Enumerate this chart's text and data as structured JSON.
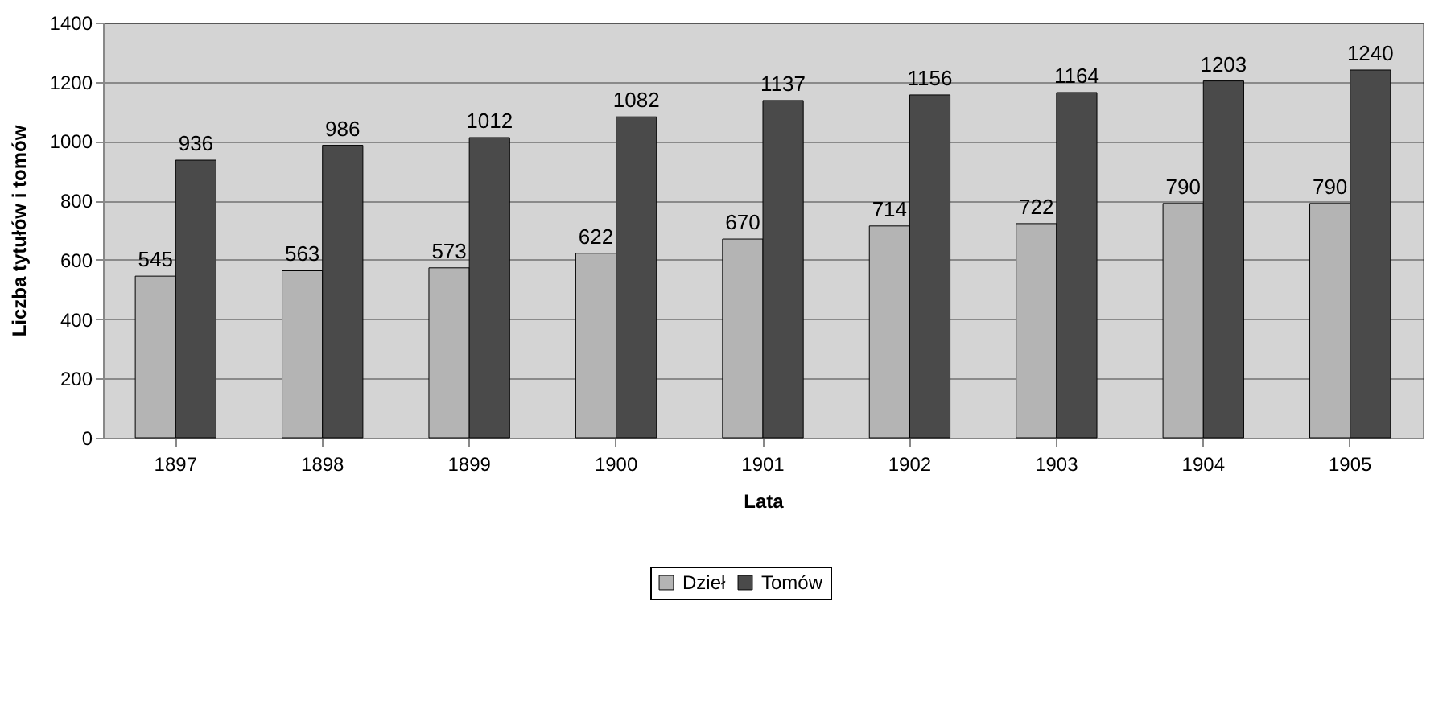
{
  "chart_data": {
    "type": "bar",
    "xlabel": "Lata",
    "ylabel": "Liczba tytułów i tomów",
    "categories": [
      "1897",
      "1898",
      "1899",
      "1900",
      "1901",
      "1902",
      "1903",
      "1904",
      "1905"
    ],
    "series": [
      {
        "name": "Dzieł",
        "color": "#b4b4b4",
        "values": [
          545,
          563,
          573,
          622,
          670,
          714,
          722,
          790,
          790
        ]
      },
      {
        "name": "Tomów",
        "color": "#4a4a4a",
        "values": [
          936,
          986,
          1012,
          1082,
          1137,
          1156,
          1164,
          1203,
          1240
        ]
      }
    ],
    "ylim": [
      0,
      1400
    ],
    "yticks": [
      0,
      200,
      400,
      600,
      800,
      1000,
      1200,
      1400
    ],
    "grid": "y",
    "legend": "bottom",
    "data_labels": true
  }
}
